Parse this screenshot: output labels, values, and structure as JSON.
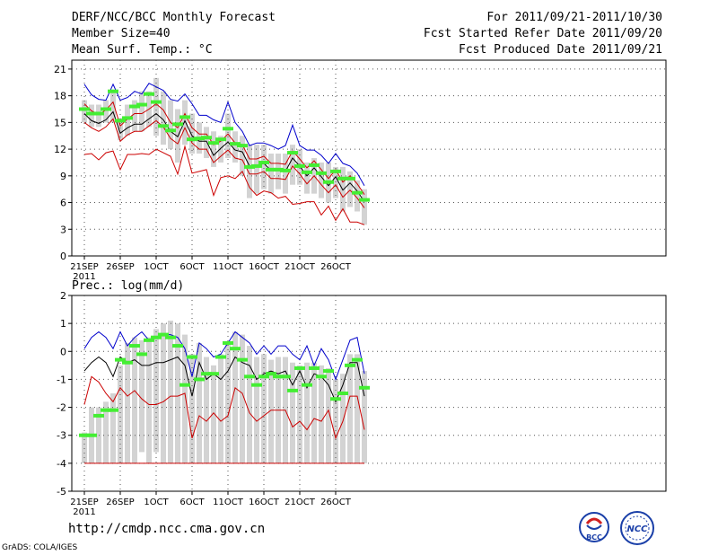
{
  "header": {
    "title": "DERF/NCC/BCC Monthly Forecast",
    "member_size": "Member Size=40",
    "period": "For 2011/09/21-2011/10/30",
    "started": "Fcst Started Refer Date 2011/09/20",
    "produced": "Fcst Produced Date 2011/09/21"
  },
  "footer": {
    "url": "http://cmdp.ncc.cma.gov.cn",
    "grads": "GrADS: COLA/IGES",
    "logo_left": "BCC",
    "logo_right": "NCC"
  },
  "colors": {
    "max": "#0000cc",
    "min": "#cc0000",
    "mean": "#000000",
    "box": "#d3d3d3",
    "obs": "#44ee33"
  },
  "chart_data": [
    {
      "type": "box-line",
      "title": "Mean Surf. Temp.: °C",
      "xlabel": "",
      "ylabel": "",
      "ylim": [
        0,
        22
      ],
      "yticks": [
        0,
        3,
        6,
        9,
        12,
        15,
        18,
        21
      ],
      "xticks": [
        {
          "day": 1,
          "label": "21SEP",
          "sub": "2011"
        },
        {
          "day": 6,
          "label": "26SEP"
        },
        {
          "day": 11,
          "label": "1OCT"
        },
        {
          "day": 16,
          "label": "6OCT"
        },
        {
          "day": 21,
          "label": "11OCT"
        },
        {
          "day": 26,
          "label": "16OCT"
        },
        {
          "day": 31,
          "label": "21OCT"
        },
        {
          "day": 36,
          "label": "26OCT"
        }
      ],
      "days": 40,
      "series": [
        {
          "name": "max",
          "values": [
            19.3,
            18.1,
            17.6,
            17.5,
            19.3,
            17.5,
            17.8,
            18.5,
            18.2,
            19.4,
            19.0,
            18.6,
            17.6,
            17.4,
            18.2,
            17.1,
            15.8,
            15.8,
            15.3,
            15.0,
            17.3,
            15.0,
            14.0,
            12.4,
            12.7,
            12.7,
            12.4,
            12.0,
            12.4,
            14.7,
            12.4,
            11.9,
            11.9,
            11.3,
            10.4,
            11.5,
            10.4,
            10.1,
            9.3,
            7.9
          ]
        },
        {
          "name": "mean",
          "values": [
            16.0,
            15.2,
            14.9,
            15.3,
            16.2,
            13.8,
            14.4,
            14.8,
            14.8,
            15.4,
            16.0,
            15.3,
            14.0,
            13.4,
            15.2,
            13.5,
            12.9,
            12.9,
            11.3,
            12.1,
            12.8,
            11.9,
            11.7,
            10.1,
            10.1,
            10.4,
            9.6,
            9.6,
            9.5,
            11.0,
            10.1,
            9.0,
            9.9,
            8.9,
            7.9,
            8.9,
            7.4,
            8.2,
            7.3,
            6.1
          ]
        },
        {
          "name": "upper",
          "values": [
            17.1,
            16.3,
            15.9,
            16.4,
            17.3,
            14.6,
            15.4,
            16.0,
            16.0,
            16.5,
            17.1,
            16.4,
            15.0,
            14.4,
            16.0,
            14.4,
            13.7,
            13.7,
            12.5,
            12.9,
            13.7,
            12.7,
            12.5,
            10.9,
            10.9,
            11.2,
            10.4,
            10.4,
            10.3,
            11.8,
            10.9,
            9.9,
            10.7,
            9.7,
            8.7,
            9.7,
            8.3,
            9.0,
            8.1,
            6.9
          ]
        },
        {
          "name": "lower",
          "values": [
            15.0,
            14.4,
            14.0,
            14.5,
            15.4,
            12.9,
            13.6,
            14.0,
            14.0,
            14.6,
            15.2,
            14.5,
            13.2,
            12.6,
            14.4,
            12.7,
            12.0,
            12.0,
            10.5,
            11.2,
            11.9,
            11.0,
            10.8,
            9.2,
            9.2,
            9.5,
            8.7,
            8.7,
            8.6,
            10.1,
            9.2,
            8.1,
            9.0,
            8.0,
            7.1,
            8.0,
            6.6,
            7.4,
            6.5,
            5.4
          ]
        },
        {
          "name": "min",
          "values": [
            11.4,
            11.5,
            10.8,
            11.6,
            11.8,
            9.7,
            11.4,
            11.4,
            11.5,
            11.4,
            12.0,
            11.6,
            11.2,
            9.2,
            12.3,
            9.3,
            9.5,
            9.7,
            6.8,
            8.8,
            9.0,
            8.7,
            9.5,
            7.7,
            6.8,
            7.3,
            7.1,
            6.5,
            6.7,
            5.8,
            5.9,
            6.1,
            6.1,
            4.6,
            5.6,
            4.0,
            5.3,
            3.8,
            3.8,
            3.5
          ]
        }
      ],
      "boxes": [
        [
          15.0,
          17.5
        ],
        [
          14.5,
          17.0
        ],
        [
          14.5,
          17.0
        ],
        [
          15.0,
          17.5
        ],
        [
          15.0,
          18.5
        ],
        [
          13.0,
          15.5
        ],
        [
          13.5,
          17.0
        ],
        [
          14.0,
          17.5
        ],
        [
          14.0,
          18.5
        ],
        [
          14.5,
          18.5
        ],
        [
          13.5,
          20.0
        ],
        [
          12.5,
          18.5
        ],
        [
          12.0,
          17.5
        ],
        [
          10.5,
          16.5
        ],
        [
          12.5,
          17.5
        ],
        [
          11.5,
          16.0
        ],
        [
          11.5,
          15.0
        ],
        [
          11.0,
          14.5
        ],
        [
          10.0,
          14.0
        ],
        [
          10.5,
          13.5
        ],
        [
          11.0,
          16.0
        ],
        [
          10.5,
          14.0
        ],
        [
          9.0,
          13.5
        ],
        [
          6.5,
          12.5
        ],
        [
          7.0,
          12.5
        ],
        [
          7.5,
          12.5
        ],
        [
          7.0,
          11.5
        ],
        [
          7.5,
          11.5
        ],
        [
          7.0,
          11.5
        ],
        [
          8.0,
          12.5
        ],
        [
          8.0,
          12.0
        ],
        [
          7.0,
          10.5
        ],
        [
          7.0,
          11.0
        ],
        [
          6.5,
          10.5
        ],
        [
          6.0,
          10.5
        ],
        [
          6.5,
          10.0
        ],
        [
          5.0,
          10.0
        ],
        [
          5.5,
          9.5
        ],
        [
          5.0,
          8.5
        ],
        [
          3.5,
          7.5
        ]
      ],
      "observed": [
        16.5,
        16.0,
        16.0,
        16.5,
        18.5,
        15.2,
        15.5,
        16.8,
        17.0,
        18.2,
        17.3,
        14.6,
        14.1,
        14.8,
        15.6,
        13.1,
        13.2,
        13.3,
        12.7,
        13.1,
        14.3,
        12.6,
        12.4,
        10.0,
        10.1,
        10.5,
        9.7,
        9.7,
        9.6,
        11.6,
        10.1,
        9.4,
        10.2,
        9.3,
        8.3,
        9.5,
        8.7,
        8.7,
        7.1,
        6.3
      ]
    },
    {
      "type": "box-line",
      "title": "Prec.: log(mm/d)",
      "xlabel": "",
      "ylabel": "",
      "ylim": [
        -5,
        2
      ],
      "yticks": [
        -5,
        -4,
        -3,
        -2,
        -1,
        0,
        1,
        2
      ],
      "xticks": [
        {
          "day": 1,
          "label": "21SEP",
          "sub": "2011"
        },
        {
          "day": 6,
          "label": "26SEP"
        },
        {
          "day": 11,
          "label": "1OCT"
        },
        {
          "day": 16,
          "label": "6OCT"
        },
        {
          "day": 21,
          "label": "11OCT"
        },
        {
          "day": 26,
          "label": "16OCT"
        },
        {
          "day": 31,
          "label": "21OCT"
        },
        {
          "day": 36,
          "label": "26OCT"
        }
      ],
      "days": 40,
      "series": [
        {
          "name": "max",
          "values": [
            0.1,
            0.5,
            0.7,
            0.5,
            0.1,
            0.7,
            0.2,
            0.5,
            0.7,
            0.4,
            0.5,
            0.6,
            0.6,
            0.5,
            0.1,
            -0.9,
            0.3,
            0.1,
            -0.2,
            -0.1,
            0.3,
            0.7,
            0.5,
            0.3,
            -0.1,
            0.2,
            -0.1,
            0.2,
            0.2,
            -0.1,
            -0.3,
            0.2,
            -0.5,
            0.1,
            -0.3,
            -1.0,
            -0.3,
            0.4,
            0.5,
            -0.8
          ]
        },
        {
          "name": "mean",
          "values": [
            -0.7,
            -0.4,
            -0.2,
            -0.4,
            -0.9,
            -0.2,
            -0.4,
            -0.3,
            -0.5,
            -0.5,
            -0.4,
            -0.4,
            -0.3,
            -0.2,
            -0.5,
            -1.6,
            -0.4,
            -1.0,
            -0.8,
            -1.0,
            -0.7,
            -0.2,
            -0.4,
            -0.5,
            -1.0,
            -0.8,
            -0.7,
            -0.8,
            -0.7,
            -1.2,
            -0.7,
            -1.3,
            -0.8,
            -0.9,
            -1.2,
            -1.8,
            -1.2,
            -0.4,
            -0.4,
            -1.6
          ]
        },
        {
          "name": "min",
          "values": [
            -1.9,
            -0.9,
            -1.1,
            -1.5,
            -1.8,
            -1.3,
            -1.6,
            -1.4,
            -1.7,
            -1.9,
            -1.9,
            -1.8,
            -1.6,
            -1.6,
            -1.5,
            -3.1,
            -2.3,
            -2.5,
            -2.2,
            -2.5,
            -2.3,
            -1.3,
            -1.5,
            -2.2,
            -2.5,
            -2.3,
            -2.1,
            -2.1,
            -2.1,
            -2.7,
            -2.5,
            -2.8,
            -2.4,
            -2.5,
            -2.1,
            -3.1,
            -2.5,
            -1.6,
            -1.6,
            -2.8
          ]
        }
      ],
      "boxes": [
        [
          -4.0,
          -2.9
        ],
        [
          -4.0,
          -2.0
        ],
        [
          -4.0,
          -2.0
        ],
        [
          -4.0,
          -1.8
        ],
        [
          -4.0,
          -1.5
        ],
        [
          -4.0,
          -0.5
        ],
        [
          -4.0,
          0.3
        ],
        [
          -4.0,
          0.5
        ],
        [
          -3.6,
          0.4
        ],
        [
          -4.0,
          0.5
        ],
        [
          -3.6,
          0.8
        ],
        [
          -4.0,
          1.0
        ],
        [
          -4.0,
          1.1
        ],
        [
          -4.0,
          1.0
        ],
        [
          -4.0,
          0.6
        ],
        [
          -4.0,
          -0.1
        ],
        [
          -4.0,
          0.3
        ],
        [
          -4.0,
          -0.2
        ],
        [
          -4.0,
          -0.5
        ],
        [
          -4.0,
          -0.1
        ],
        [
          -4.0,
          0.3
        ],
        [
          -4.0,
          0.7
        ],
        [
          -4.0,
          0.6
        ],
        [
          -4.0,
          0.2
        ],
        [
          -4.0,
          -0.2
        ],
        [
          -4.0,
          -0.1
        ],
        [
          -4.0,
          -0.3
        ],
        [
          -4.0,
          -0.2
        ],
        [
          -4.0,
          -0.2
        ],
        [
          -4.0,
          -0.4
        ],
        [
          -4.0,
          -0.5
        ],
        [
          -4.0,
          -0.4
        ],
        [
          -4.0,
          -0.4
        ],
        [
          -4.0,
          -0.5
        ],
        [
          -4.0,
          -0.6
        ],
        [
          -4.0,
          -1.0
        ],
        [
          -4.0,
          -0.8
        ],
        [
          -4.0,
          -0.1
        ],
        [
          -4.0,
          -0.1
        ],
        [
          -4.0,
          -0.7
        ]
      ],
      "observed": [
        -3.0,
        -3.0,
        -2.3,
        -2.1,
        -2.1,
        -0.3,
        -0.4,
        0.2,
        -0.1,
        0.4,
        0.5,
        0.6,
        0.5,
        0.2,
        -1.2,
        -0.2,
        -1.0,
        -0.8,
        -0.8,
        -0.2,
        0.3,
        0.1,
        -0.3,
        -0.9,
        -1.2,
        -0.9,
        -0.8,
        -0.9,
        -0.9,
        -1.4,
        -0.6,
        -1.2,
        -0.6,
        -0.9,
        -0.7,
        -1.7,
        -1.5,
        -0.5,
        -0.3,
        -1.3
      ]
    }
  ]
}
